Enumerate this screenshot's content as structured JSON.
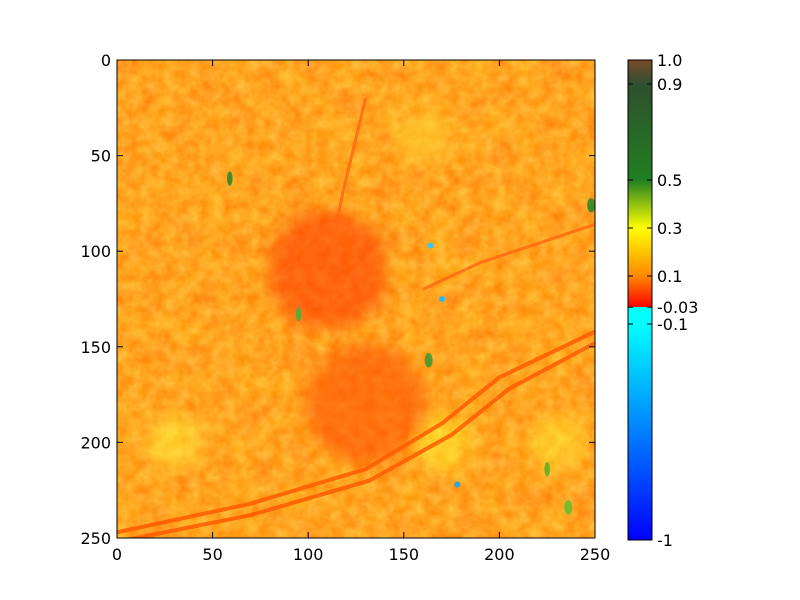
{
  "chart_data": {
    "type": "heatmap",
    "image": {
      "rows": 251,
      "cols": 251,
      "xlim": [
        0,
        250
      ],
      "ylim": [
        250,
        0
      ],
      "description": "false-color raster of an index field; mostly orange/yellow values with a darker red urban core, linear corridors and scattered green/blue patches"
    },
    "axes": {
      "x_ticks": [
        0,
        50,
        100,
        150,
        200,
        250
      ],
      "x_tick_labels": [
        "0",
        "50",
        "100",
        "150",
        "200",
        "250"
      ],
      "y_ticks": [
        0,
        50,
        100,
        150,
        200,
        250
      ],
      "y_tick_labels": [
        "0",
        "50",
        "100",
        "150",
        "200",
        "250"
      ],
      "y_inverted": true
    },
    "colorbar": {
      "vmin": -1,
      "vmax": 1.0,
      "ticks": [
        1.0,
        0.9,
        0.5,
        0.3,
        0.1,
        -0.03,
        -0.1,
        -1
      ],
      "tick_labels": [
        "1.0",
        "0.9",
        "0.5",
        "0.3",
        "0.1",
        "-0.03",
        "-0.1",
        "-1"
      ],
      "stops": [
        {
          "value": -1.0,
          "color": "#0000ff"
        },
        {
          "value": -0.1,
          "color": "#00ffff"
        },
        {
          "value": -0.03,
          "color": "#ff0000"
        },
        {
          "value": 0.1,
          "color": "#ff8800"
        },
        {
          "value": 0.3,
          "color": "#ffff00"
        },
        {
          "value": 0.5,
          "color": "#208020"
        },
        {
          "value": 0.9,
          "color": "#2f4f2f"
        },
        {
          "value": 1.0,
          "color": "#7a4a2a"
        }
      ]
    },
    "features": [
      {
        "kind": "urban-core",
        "x": 110,
        "y": 110,
        "color": "#ff3300"
      },
      {
        "kind": "urban-core",
        "x": 130,
        "y": 180,
        "color": "#ff4a00"
      },
      {
        "kind": "vegetation",
        "x": 170,
        "y": 200,
        "color": "#ffff30"
      },
      {
        "kind": "vegetation",
        "x": 30,
        "y": 200,
        "color": "#ffff40"
      },
      {
        "kind": "vegetation",
        "x": 230,
        "y": 200,
        "color": "#ffee30"
      },
      {
        "kind": "vegetation",
        "x": 160,
        "y": 40,
        "color": "#ffe030"
      },
      {
        "kind": "green-patch",
        "x": 236,
        "y": 234,
        "color": "#6cbd2a"
      },
      {
        "kind": "green-patch",
        "x": 225,
        "y": 214,
        "color": "#63b428"
      },
      {
        "kind": "green-patch",
        "x": 248,
        "y": 76,
        "color": "#3a8a2a"
      },
      {
        "kind": "green-patch",
        "x": 59,
        "y": 62,
        "color": "#3a8a2a"
      },
      {
        "kind": "green-patch",
        "x": 163,
        "y": 157,
        "color": "#4c9a30"
      },
      {
        "kind": "green-patch",
        "x": 95,
        "y": 133,
        "color": "#5aa830"
      },
      {
        "kind": "water",
        "x": 178,
        "y": 222,
        "color": "#1aa4ff"
      },
      {
        "kind": "water",
        "x": 170,
        "y": 125,
        "color": "#22b8ff"
      },
      {
        "kind": "water",
        "x": 164,
        "y": 97,
        "color": "#33c7ff"
      }
    ],
    "corridors": [
      {
        "kind": "rail",
        "points": [
          [
            0,
            247
          ],
          [
            70,
            232
          ],
          [
            130,
            214
          ],
          [
            170,
            190
          ],
          [
            200,
            166
          ],
          [
            250,
            142
          ]
        ]
      },
      {
        "kind": "rail",
        "points": [
          [
            0,
            252
          ],
          [
            70,
            238
          ],
          [
            132,
            220
          ],
          [
            175,
            196
          ],
          [
            205,
            172
          ],
          [
            250,
            148
          ]
        ]
      },
      {
        "kind": "road",
        "points": [
          [
            160,
            120
          ],
          [
            190,
            106
          ],
          [
            250,
            86
          ]
        ]
      },
      {
        "kind": "road",
        "points": [
          [
            110,
            110
          ],
          [
            118,
            70
          ],
          [
            130,
            20
          ]
        ]
      }
    ]
  }
}
